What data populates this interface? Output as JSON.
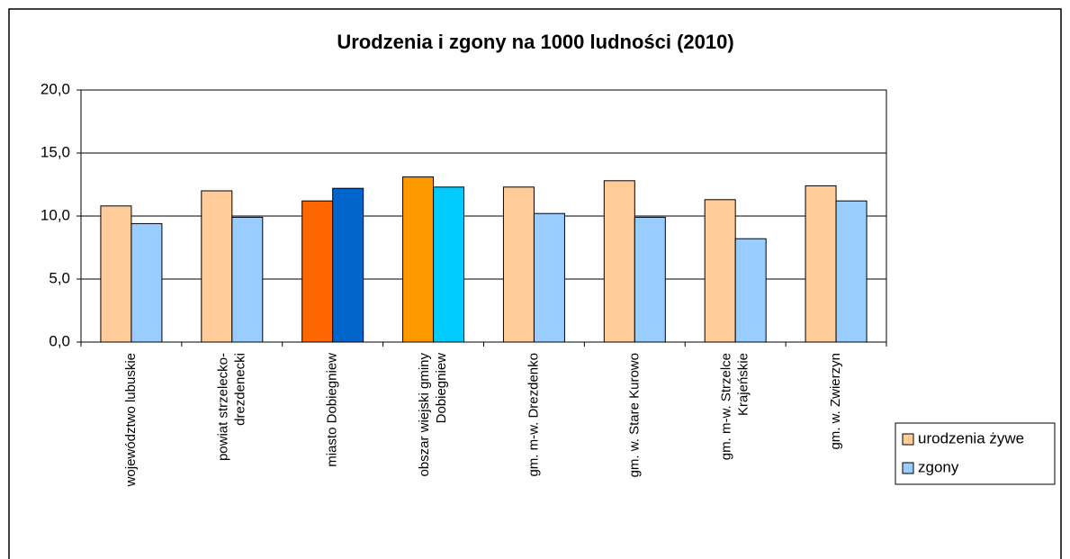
{
  "chart_data": {
    "type": "bar",
    "title": "Urodzenia i zgony na 1000 ludności (2010)",
    "categories": [
      "województwo lubuskie",
      "powiat strzelecko-\ndrezdenecki",
      "miasto Dobiegniew",
      "obszar wiejski gminy\nDobiegniew",
      "gm. m-w. Drezdenko",
      "gm. w. Stare Kurowo",
      "gm. m-w. Strzelce\nKrajeńskie",
      "gm. w. Zwierzyn"
    ],
    "series": [
      {
        "name": "urodzenia żywe",
        "color": "#ffcc99",
        "colors": [
          "#ffcc99",
          "#ffcc99",
          "#ff6600",
          "#ff9900",
          "#ffcc99",
          "#ffcc99",
          "#ffcc99",
          "#ffcc99"
        ],
        "values": [
          10.8,
          12.0,
          11.2,
          13.1,
          12.3,
          12.8,
          11.3,
          12.4
        ]
      },
      {
        "name": "zgony",
        "color": "#99ccff",
        "colors": [
          "#99ccff",
          "#99ccff",
          "#0066cc",
          "#00ccff",
          "#99ccff",
          "#99ccff",
          "#99ccff",
          "#99ccff"
        ],
        "values": [
          9.4,
          9.9,
          12.2,
          12.3,
          10.2,
          9.9,
          8.2,
          11.2
        ]
      }
    ],
    "ylim": [
      0,
      20
    ],
    "yticks": [
      {
        "value": 0,
        "label": "0,0"
      },
      {
        "value": 5,
        "label": "5,0"
      },
      {
        "value": 10,
        "label": "10,0"
      },
      {
        "value": 15,
        "label": "15,0"
      },
      {
        "value": 20,
        "label": "20,0"
      }
    ],
    "grid": true,
    "legend": "right"
  }
}
